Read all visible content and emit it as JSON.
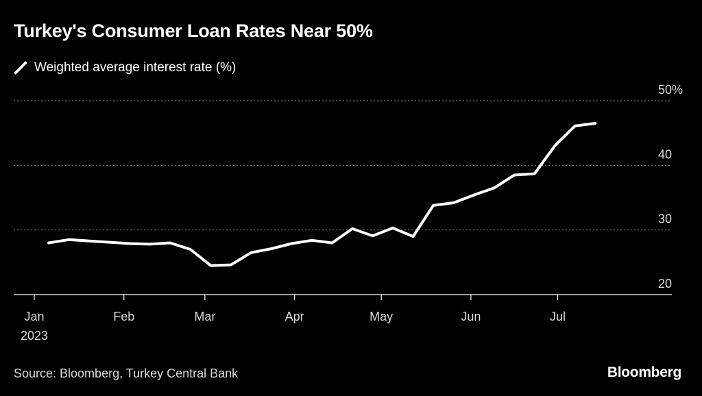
{
  "header": {
    "title": "Turkey's Consumer Loan Rates Near 50%"
  },
  "legend": {
    "label": "Weighted average interest rate (%)"
  },
  "footer": {
    "source": "Source: Bloomberg, Turkey Central Bank",
    "brand": "Bloomberg"
  },
  "colors": {
    "background": "#000000",
    "line": "#ffffff",
    "grid": "#8a8a8a",
    "axis": "#ffffff",
    "tick_text": "#d9d9d9"
  },
  "chart_data": {
    "type": "line",
    "title": "Turkey's Consumer Loan Rates Near 50%",
    "series": [
      {
        "name": "Weighted average interest rate (%)",
        "points": [
          {
            "date": "2023-01-06",
            "value": 28.0
          },
          {
            "date": "2023-01-13",
            "value": 28.5
          },
          {
            "date": "2023-01-20",
            "value": 28.3
          },
          {
            "date": "2023-01-27",
            "value": 28.1
          },
          {
            "date": "2023-02-03",
            "value": 27.9
          },
          {
            "date": "2023-02-10",
            "value": 27.8
          },
          {
            "date": "2023-02-17",
            "value": 28.0
          },
          {
            "date": "2023-02-24",
            "value": 27.0
          },
          {
            "date": "2023-03-03",
            "value": 24.5
          },
          {
            "date": "2023-03-10",
            "value": 24.6
          },
          {
            "date": "2023-03-17",
            "value": 26.5
          },
          {
            "date": "2023-03-24",
            "value": 27.1
          },
          {
            "date": "2023-03-31",
            "value": 27.9
          },
          {
            "date": "2023-04-07",
            "value": 28.4
          },
          {
            "date": "2023-04-14",
            "value": 28.0
          },
          {
            "date": "2023-04-21",
            "value": 30.2
          },
          {
            "date": "2023-04-28",
            "value": 29.1
          },
          {
            "date": "2023-05-05",
            "value": 30.3
          },
          {
            "date": "2023-05-12",
            "value": 29.0
          },
          {
            "date": "2023-05-19",
            "value": 33.8
          },
          {
            "date": "2023-05-26",
            "value": 34.2
          },
          {
            "date": "2023-06-02",
            "value": 35.4
          },
          {
            "date": "2023-06-09",
            "value": 36.5
          },
          {
            "date": "2023-06-16",
            "value": 38.5
          },
          {
            "date": "2023-06-23",
            "value": 38.7
          },
          {
            "date": "2023-06-30",
            "value": 43.0
          },
          {
            "date": "2023-07-07",
            "value": 46.1
          },
          {
            "date": "2023-07-14",
            "value": 46.5
          }
        ]
      }
    ],
    "x_axis": {
      "range": [
        "2023-01-01",
        "2023-07-31"
      ],
      "ticks": [
        {
          "date": "2023-01-01",
          "label": "Jan",
          "sublabel": "2023"
        },
        {
          "date": "2023-02-01",
          "label": "Feb"
        },
        {
          "date": "2023-03-01",
          "label": "Mar"
        },
        {
          "date": "2023-04-01",
          "label": "Apr"
        },
        {
          "date": "2023-05-01",
          "label": "May"
        },
        {
          "date": "2023-06-01",
          "label": "Jun"
        },
        {
          "date": "2023-07-01",
          "label": "Jul"
        }
      ]
    },
    "y_axis": {
      "range": [
        20,
        50
      ],
      "ticks": [
        {
          "value": 50,
          "label": "50%"
        },
        {
          "value": 40,
          "label": "40"
        },
        {
          "value": 30,
          "label": "30"
        },
        {
          "value": 20,
          "label": "20"
        }
      ],
      "position": "right",
      "grid": true
    }
  }
}
